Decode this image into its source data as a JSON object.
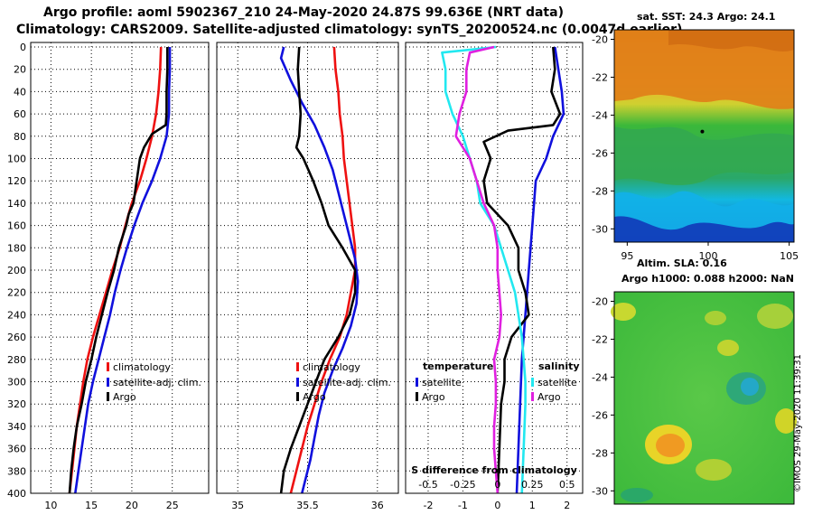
{
  "header": {
    "title_line1": "Argo profile: aoml 5902367_210 24-May-2020 24.87S 99.636E (NRT data)",
    "title_line2": "Climatology: CARS2009. Satellite-adjusted climatology: synTS_20200524.nc (0.0047d earlier)"
  },
  "colors": {
    "climatology": "#ee1111",
    "satellite": "#1010dd",
    "argo": "#000000",
    "sal_satellite": "#22e8f0",
    "sal_argo": "#e020e0"
  },
  "chart_data": [
    {
      "type": "line",
      "name": "temperature-profile",
      "xlim": [
        7.5,
        29.5
      ],
      "ylim": [
        400,
        0
      ],
      "x_ticks": [
        10,
        15,
        20,
        25
      ],
      "y_ticks": [
        0,
        20,
        40,
        60,
        80,
        100,
        120,
        140,
        160,
        180,
        200,
        220,
        240,
        260,
        280,
        300,
        320,
        340,
        360,
        380,
        400
      ],
      "legend": [
        "climatology",
        "satellite-adj. clim.",
        "Argo"
      ],
      "series": [
        {
          "name": "climatology",
          "color": "#ee1111",
          "points": [
            [
              23.6,
              0
            ],
            [
              23.5,
              20
            ],
            [
              23.3,
              40
            ],
            [
              23.0,
              60
            ],
            [
              22.5,
              80
            ],
            [
              21.8,
              100
            ],
            [
              21.0,
              120
            ],
            [
              20.0,
              140
            ],
            [
              19.2,
              160
            ],
            [
              18.5,
              180
            ],
            [
              17.6,
              200
            ],
            [
              16.8,
              220
            ],
            [
              16.0,
              240
            ],
            [
              15.2,
              260
            ],
            [
              14.5,
              280
            ],
            [
              14.0,
              300
            ],
            [
              13.6,
              320
            ],
            [
              13.2,
              340
            ],
            [
              12.9,
              360
            ],
            [
              12.6,
              380
            ],
            [
              12.3,
              400
            ]
          ]
        },
        {
          "name": "satellite-adj. clim.",
          "color": "#1010dd",
          "points": [
            [
              24.7,
              0
            ],
            [
              24.7,
              20
            ],
            [
              24.6,
              40
            ],
            [
              24.6,
              60
            ],
            [
              24.3,
              80
            ],
            [
              23.5,
              100
            ],
            [
              22.5,
              120
            ],
            [
              21.3,
              140
            ],
            [
              20.3,
              160
            ],
            [
              19.4,
              180
            ],
            [
              18.6,
              200
            ],
            [
              17.9,
              220
            ],
            [
              17.3,
              240
            ],
            [
              16.6,
              260
            ],
            [
              15.9,
              280
            ],
            [
              15.2,
              300
            ],
            [
              14.6,
              320
            ],
            [
              14.2,
              340
            ],
            [
              13.8,
              360
            ],
            [
              13.4,
              380
            ],
            [
              13.0,
              400
            ]
          ]
        },
        {
          "name": "Argo",
          "color": "#000000",
          "points": [
            [
              24.4,
              0
            ],
            [
              24.4,
              20
            ],
            [
              24.3,
              40
            ],
            [
              24.3,
              60
            ],
            [
              24.2,
              70
            ],
            [
              22.5,
              78
            ],
            [
              21.5,
              90
            ],
            [
              21.0,
              100
            ],
            [
              20.6,
              120
            ],
            [
              20.2,
              140
            ],
            [
              19.6,
              150
            ],
            [
              19.3,
              160
            ],
            [
              18.4,
              180
            ],
            [
              17.8,
              200
            ],
            [
              17.0,
              220
            ],
            [
              16.3,
              240
            ],
            [
              15.6,
              260
            ],
            [
              15.0,
              280
            ],
            [
              14.3,
              300
            ],
            [
              13.8,
              320
            ],
            [
              13.2,
              340
            ],
            [
              12.8,
              360
            ],
            [
              12.5,
              380
            ],
            [
              12.3,
              400
            ]
          ]
        }
      ]
    },
    {
      "type": "line",
      "name": "salinity-profile",
      "xlim": [
        34.85,
        36.15
      ],
      "ylim": [
        400,
        0
      ],
      "x_ticks": [
        35,
        35.5,
        36
      ],
      "legend": [
        "climatology",
        "satellite-adj. clim.",
        "Argo"
      ],
      "series": [
        {
          "name": "climatology",
          "color": "#ee1111",
          "points": [
            [
              35.69,
              0
            ],
            [
              35.7,
              20
            ],
            [
              35.72,
              40
            ],
            [
              35.73,
              60
            ],
            [
              35.75,
              80
            ],
            [
              35.76,
              100
            ],
            [
              35.78,
              120
            ],
            [
              35.8,
              140
            ],
            [
              35.82,
              160
            ],
            [
              35.84,
              180
            ],
            [
              35.84,
              200
            ],
            [
              35.81,
              220
            ],
            [
              35.78,
              240
            ],
            [
              35.73,
              260
            ],
            [
              35.66,
              280
            ],
            [
              35.6,
              300
            ],
            [
              35.55,
              320
            ],
            [
              35.5,
              340
            ],
            [
              35.46,
              360
            ],
            [
              35.42,
              380
            ],
            [
              35.38,
              400
            ]
          ]
        },
        {
          "name": "satellite-adj. clim.",
          "color": "#1010dd",
          "points": [
            [
              35.33,
              0
            ],
            [
              35.31,
              10
            ],
            [
              35.38,
              30
            ],
            [
              35.46,
              50
            ],
            [
              35.55,
              70
            ],
            [
              35.62,
              90
            ],
            [
              35.68,
              110
            ],
            [
              35.72,
              130
            ],
            [
              35.76,
              150
            ],
            [
              35.8,
              170
            ],
            [
              35.84,
              190
            ],
            [
              35.86,
              210
            ],
            [
              35.85,
              230
            ],
            [
              35.81,
              250
            ],
            [
              35.75,
              270
            ],
            [
              35.68,
              290
            ],
            [
              35.62,
              310
            ],
            [
              35.58,
              330
            ],
            [
              35.55,
              350
            ],
            [
              35.52,
              370
            ],
            [
              35.48,
              390
            ],
            [
              35.46,
              400
            ]
          ]
        },
        {
          "name": "Argo",
          "color": "#000000",
          "points": [
            [
              35.44,
              0
            ],
            [
              35.43,
              20
            ],
            [
              35.44,
              40
            ],
            [
              35.45,
              60
            ],
            [
              35.44,
              80
            ],
            [
              35.42,
              90
            ],
            [
              35.47,
              100
            ],
            [
              35.54,
              120
            ],
            [
              35.6,
              140
            ],
            [
              35.65,
              160
            ],
            [
              35.75,
              180
            ],
            [
              35.84,
              200
            ],
            [
              35.84,
              220
            ],
            [
              35.8,
              240
            ],
            [
              35.72,
              260
            ],
            [
              35.62,
              280
            ],
            [
              35.56,
              300
            ],
            [
              35.5,
              320
            ],
            [
              35.44,
              340
            ],
            [
              35.38,
              360
            ],
            [
              35.33,
              380
            ],
            [
              35.31,
              400
            ]
          ]
        }
      ]
    },
    {
      "type": "line",
      "name": "difference-profile",
      "xlim": [
        -2.65,
        2.45
      ],
      "ylim": [
        400,
        0
      ],
      "x_ticks_temperature": [
        -2,
        -1,
        0,
        1,
        2
      ],
      "x_tick_labels_salinity": [
        "-0.5",
        "-0.25",
        "0",
        "0.25",
        "0.5"
      ],
      "xlabel": "S difference from climatology",
      "legend": {
        "temperature": [
          "satellite",
          "Argo"
        ],
        "salinity": [
          "satellite",
          "Argo"
        ]
      },
      "series": [
        {
          "name": "temperature satellite",
          "color": "#1010dd",
          "points": [
            [
              1.65,
              0
            ],
            [
              1.75,
              20
            ],
            [
              1.85,
              40
            ],
            [
              1.9,
              60
            ],
            [
              1.6,
              80
            ],
            [
              1.4,
              100
            ],
            [
              1.1,
              120
            ],
            [
              1.0,
              160
            ],
            [
              0.9,
              200
            ],
            [
              0.8,
              240
            ],
            [
              0.7,
              280
            ],
            [
              0.65,
              320
            ],
            [
              0.6,
              360
            ],
            [
              0.55,
              400
            ]
          ]
        },
        {
          "name": "temperature Argo",
          "color": "#000000",
          "points": [
            [
              1.6,
              0
            ],
            [
              1.65,
              20
            ],
            [
              1.55,
              40
            ],
            [
              1.8,
              60
            ],
            [
              1.6,
              70
            ],
            [
              0.3,
              75
            ],
            [
              -0.4,
              85
            ],
            [
              -0.2,
              100
            ],
            [
              -0.4,
              120
            ],
            [
              -0.3,
              140
            ],
            [
              0.3,
              160
            ],
            [
              0.6,
              180
            ],
            [
              0.6,
              200
            ],
            [
              0.8,
              220
            ],
            [
              0.9,
              240
            ],
            [
              0.4,
              260
            ],
            [
              0.2,
              280
            ],
            [
              0.2,
              300
            ],
            [
              0.1,
              320
            ],
            [
              0.05,
              360
            ],
            [
              0.0,
              400
            ]
          ]
        },
        {
          "name": "salinity satellite",
          "color": "#22e8f0",
          "points": [
            [
              -0.05,
              0
            ],
            [
              -1.6,
              5
            ],
            [
              -1.5,
              20
            ],
            [
              -1.5,
              40
            ],
            [
              -1.3,
              60
            ],
            [
              -1.0,
              80
            ],
            [
              -0.8,
              100
            ],
            [
              -0.6,
              120
            ],
            [
              -0.5,
              140
            ],
            [
              -0.1,
              160
            ],
            [
              0.1,
              180
            ],
            [
              0.3,
              200
            ],
            [
              0.5,
              220
            ],
            [
              0.6,
              240
            ],
            [
              0.7,
              260
            ],
            [
              0.75,
              280
            ],
            [
              0.8,
              300
            ],
            [
              0.8,
              320
            ],
            [
              0.75,
              360
            ],
            [
              0.7,
              400
            ]
          ]
        },
        {
          "name": "salinity Argo",
          "color": "#e020e0",
          "points": [
            [
              -0.1,
              0
            ],
            [
              -0.8,
              5
            ],
            [
              -0.9,
              20
            ],
            [
              -0.9,
              40
            ],
            [
              -1.1,
              60
            ],
            [
              -1.2,
              80
            ],
            [
              -0.8,
              100
            ],
            [
              -0.6,
              120
            ],
            [
              -0.4,
              140
            ],
            [
              -0.1,
              160
            ],
            [
              0.0,
              180
            ],
            [
              0.0,
              200
            ],
            [
              0.05,
              220
            ],
            [
              0.1,
              240
            ],
            [
              0.05,
              260
            ],
            [
              -0.1,
              280
            ],
            [
              -0.05,
              300
            ],
            [
              -0.05,
              320
            ],
            [
              -0.1,
              340
            ],
            [
              -0.1,
              360
            ],
            [
              -0.05,
              380
            ],
            [
              0.0,
              400
            ]
          ]
        }
      ]
    },
    {
      "type": "heatmap",
      "name": "sst-map",
      "caption": "sat. SST: 24.3 Argo: 24.1",
      "x_ticks": [
        95,
        100,
        105
      ],
      "y_ticks": [
        -20,
        -22,
        -24,
        -26,
        -28,
        -30
      ],
      "xlim": [
        94.2,
        105.3
      ],
      "ylim": [
        -30.7,
        -19.5
      ],
      "argo_position": [
        99.636,
        -24.87
      ]
    },
    {
      "type": "heatmap",
      "name": "sla-map",
      "caption": "Altim. SLA: 0.16",
      "subcaption": "Argo h1000: 0.088 h2000: NaN",
      "y_ticks": [
        -20,
        -22,
        -24,
        -26,
        -28,
        -30
      ],
      "ylim": [
        -30.7,
        -19.5
      ]
    }
  ],
  "footer": {
    "stamp": "©IMOS 29-May-2020 11:39:31"
  }
}
